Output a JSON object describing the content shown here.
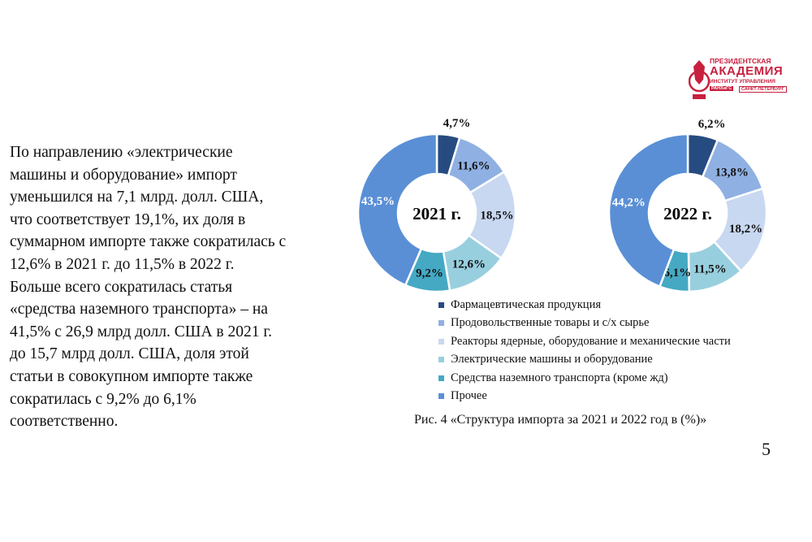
{
  "body_text": [
    "По направлению «электрические",
    "машины и оборудование» импорт",
    "уменьшился на 7,1 млрд. долл. США,",
    "что соответствует 19,1%, их доля в",
    "суммарном импорте также сократилась с",
    "12,6% в 2021 г. до 11,5% в 2022 г.",
    "Больше всего сократилась статья",
    "«средства наземного транспорта» – на",
    "41,5% с 26,9 млрд долл. США в 2021 г.",
    "до 15,7 млрд долл. США, доля этой",
    "статьи в совокупном импорте также",
    "сократилась с 9,2% до 6,1%",
    "соответственно."
  ],
  "logo": {
    "line1": "ПРЕЗИДЕНТСКАЯ",
    "line2": "АКАДЕМИЯ",
    "line3": "ИНСТИТУТ УПРАВЛЕНИЯ",
    "line4a": "РАНХиГС",
    "line4b": "САНКТ-ПЕТЕРБУРГ"
  },
  "caption": "Рис. 4 «Структура импорта за 2021 и 2022 год в (%)»",
  "page_number": "5",
  "chart_data": [
    {
      "type": "pie",
      "donut": true,
      "center_label": "2021 г.",
      "categories": [
        "Фармацевтическая продукция",
        "Продовольственные товары и с/х сырье",
        "Реакторы ядерные, оборудование и механические части",
        "Электрические машины и оборудование",
        "Средства наземного транспорта (кроме жд)",
        "Прочее"
      ],
      "values": [
        4.7,
        11.6,
        18.5,
        12.6,
        9.2,
        43.5
      ],
      "labels": [
        "4,7%",
        "11,6%",
        "18,5%",
        "12,6%",
        "9,2%",
        "43,5%"
      ]
    },
    {
      "type": "pie",
      "donut": true,
      "center_label": "2022 г.",
      "categories": [
        "Фармацевтическая продукция",
        "Продовольственные товары и с/х сырье",
        "Реакторы ядерные, оборудование и механические части",
        "Электрические машины и оборудование",
        "Средства наземного транспорта (кроме жд)",
        "Прочее"
      ],
      "values": [
        6.2,
        13.8,
        18.2,
        11.5,
        6.1,
        44.2
      ],
      "labels": [
        "6,2%",
        "13,8%",
        "18,2%",
        "11,5%",
        "6,1%",
        "44,2%"
      ]
    }
  ],
  "legend": [
    "Фармацевтическая продукция",
    "Продовольственные товары и с/х сырье",
    "Реакторы ядерные, оборудование и механические части",
    "Электрические машины и оборудование",
    "Средства наземного транспорта (кроме жд)",
    "Прочее"
  ],
  "colors": [
    "#264b80",
    "#8fb0e2",
    "#c8d8f1",
    "#98cfdf",
    "#45a9c4",
    "#5a8fd6"
  ]
}
